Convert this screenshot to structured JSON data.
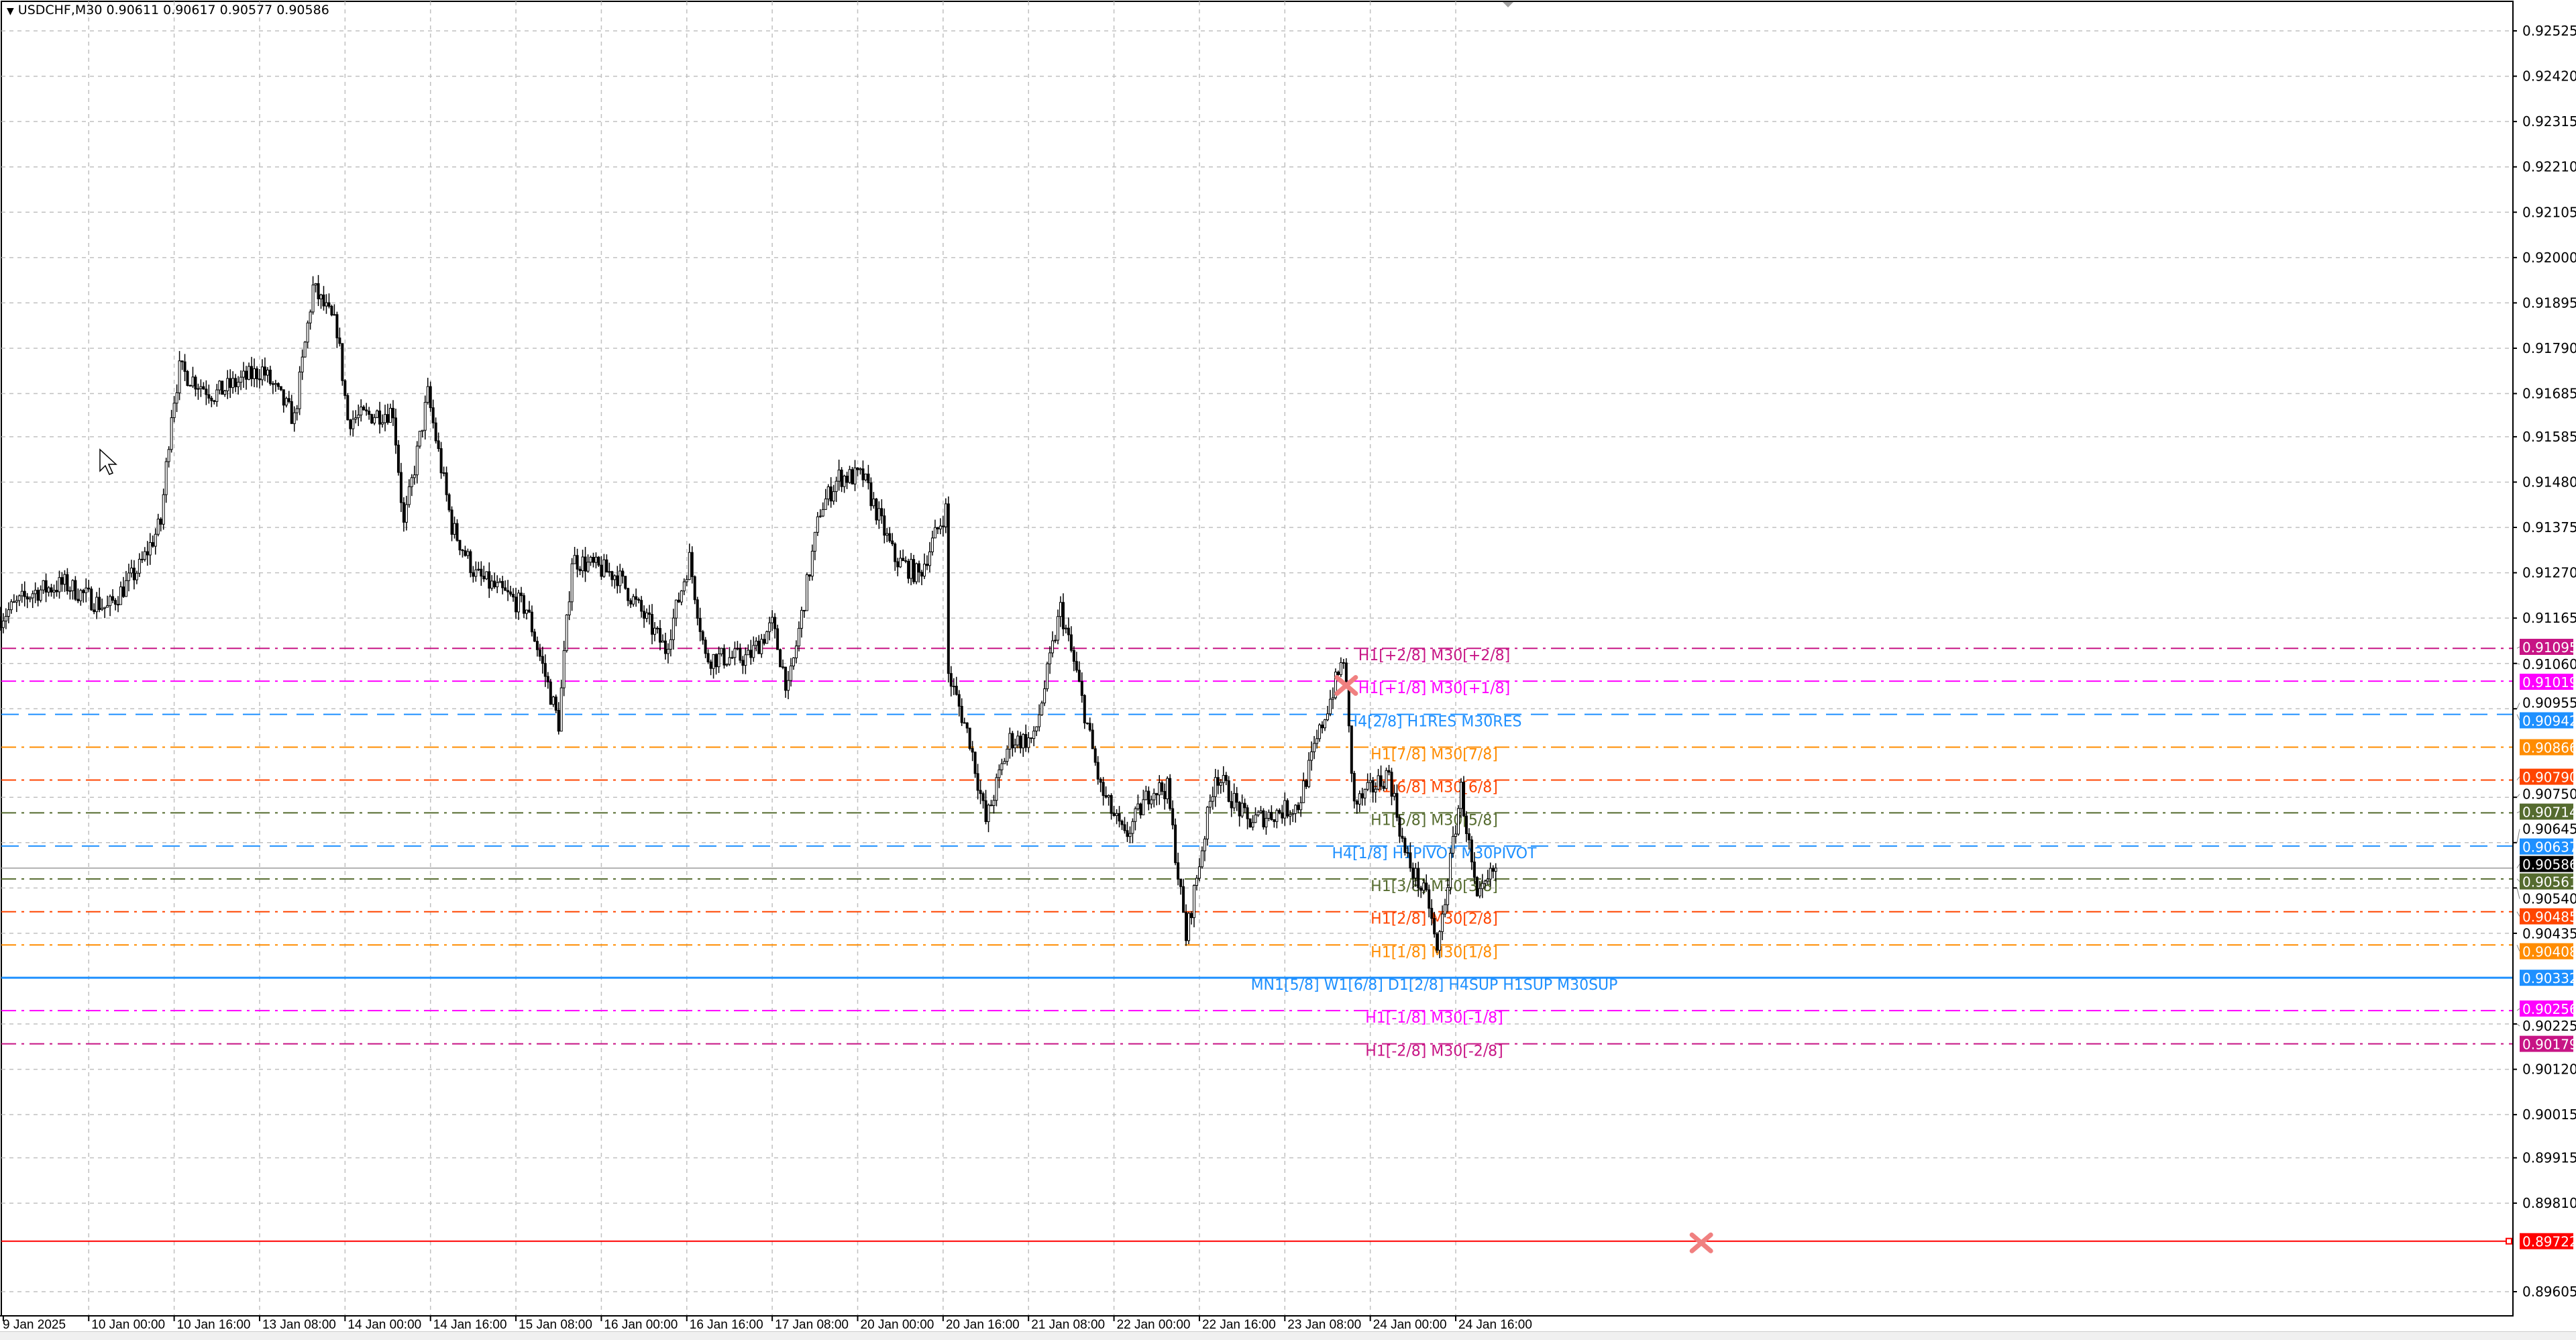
{
  "header": {
    "collapse_icon": "triangle-down-icon",
    "symbol": "USDCHF,M30",
    "open": "0.90611",
    "high": "0.90617",
    "low": "0.90577",
    "close": "0.90586"
  },
  "chart_data": {
    "type": "candlestick",
    "symbol": "USDCHF",
    "timeframe": "M30",
    "ylim": [
      0.8955,
      0.92565
    ],
    "grid": true,
    "colors": {
      "bull_body": "#FFFFFF",
      "bear_body": "#000000",
      "outline": "#000000",
      "grid": "#C0C0C0"
    },
    "price_ticks": [
      "0.92525",
      "0.92420",
      "0.92315",
      "0.92210",
      "0.92105",
      "0.92000",
      "0.91895",
      "0.91790",
      "0.91685",
      "0.91585",
      "0.91480",
      "0.91375",
      "0.91270",
      "0.91165",
      "0.91060",
      "0.90955",
      "0.90750",
      "0.90645",
      "0.90540",
      "0.90435",
      "0.90225",
      "0.90120",
      "0.90015",
      "0.89915",
      "0.89810",
      "0.89605"
    ],
    "time_ticks": [
      {
        "label": "9 Jan 2025",
        "time": "2025-01-09 08:00"
      },
      {
        "label": "10 Jan 00:00",
        "time": "2025-01-10 00:00"
      },
      {
        "label": "10 Jan 16:00",
        "time": "2025-01-10 16:00"
      },
      {
        "label": "13 Jan 08:00",
        "time": "2025-01-13 08:00"
      },
      {
        "label": "14 Jan 00:00",
        "time": "2025-01-14 00:00"
      },
      {
        "label": "14 Jan 16:00",
        "time": "2025-01-14 16:00"
      },
      {
        "label": "15 Jan 08:00",
        "time": "2025-01-15 08:00"
      },
      {
        "label": "16 Jan 00:00",
        "time": "2025-01-16 00:00"
      },
      {
        "label": "16 Jan 16:00",
        "time": "2025-01-16 16:00"
      },
      {
        "label": "17 Jan 08:00",
        "time": "2025-01-17 08:00"
      },
      {
        "label": "20 Jan 00:00",
        "time": "2025-01-20 00:00"
      },
      {
        "label": "20 Jan 16:00",
        "time": "2025-01-20 16:00"
      },
      {
        "label": "21 Jan 08:00",
        "time": "2025-01-21 08:00"
      },
      {
        "label": "22 Jan 00:00",
        "time": "2025-01-22 00:00"
      },
      {
        "label": "22 Jan 16:00",
        "time": "2025-01-22 16:00"
      },
      {
        "label": "23 Jan 08:00",
        "time": "2025-01-23 08:00"
      },
      {
        "label": "24 Jan 00:00",
        "time": "2025-01-24 00:00"
      },
      {
        "label": "24 Jan 16:00",
        "time": "2025-01-24 16:00"
      }
    ],
    "close_path": [
      [
        "2025-01-09 07:30",
        0.91168
      ],
      [
        "2025-01-09 13:30",
        0.91225
      ],
      [
        "2025-01-09 19:30",
        0.91244
      ],
      [
        "2025-01-10 03:30",
        0.91187
      ],
      [
        "2025-01-10 09:30",
        0.91282
      ],
      [
        "2025-01-10 13:30",
        0.91385
      ],
      [
        "2025-01-10 15:30",
        0.91644
      ],
      [
        "2025-01-10 17:00",
        0.9174
      ],
      [
        "2025-01-10 23:30",
        0.91683
      ],
      [
        "2025-01-13 08:30",
        0.9174
      ],
      [
        "2025-01-13 14:30",
        0.91625
      ],
      [
        "2025-01-13 18:00",
        0.9193
      ],
      [
        "2025-01-13 22:30",
        0.91835
      ],
      [
        "2025-01-14 00:30",
        0.91625
      ],
      [
        "2025-01-14 09:00",
        0.91645
      ],
      [
        "2025-01-14 11:00",
        0.91378
      ],
      [
        "2025-01-14 15:30",
        0.91683
      ],
      [
        "2025-01-14 20:00",
        0.91378
      ],
      [
        "2025-01-15 00:30",
        0.91264
      ],
      [
        "2025-01-15 10:00",
        0.91187
      ],
      [
        "2025-01-15 16:00",
        0.90921
      ],
      [
        "2025-01-15 18:30",
        0.91302
      ],
      [
        "2025-01-16 03:00",
        0.91264
      ],
      [
        "2025-01-16 12:00",
        0.91093
      ],
      [
        "2025-01-16 16:30",
        0.91302
      ],
      [
        "2025-01-16 19:30",
        0.91073
      ],
      [
        "2025-01-17 03:30",
        0.91073
      ],
      [
        "2025-01-17 08:00",
        0.91149
      ],
      [
        "2025-01-17 11:00",
        0.90997
      ],
      [
        "2025-01-17 17:00",
        0.91416
      ],
      [
        "2025-01-17 20:30",
        0.91492
      ],
      [
        "2025-01-20 01:00",
        0.91492
      ],
      [
        "2025-01-20 07:00",
        0.91302
      ],
      [
        "2025-01-20 11:30",
        0.91264
      ],
      [
        "2025-01-20 16:30",
        0.91416
      ],
      [
        "2025-01-20 17:00",
        0.91035
      ],
      [
        "2025-01-20 21:00",
        0.90883
      ],
      [
        "2025-01-21 00:00",
        0.90693
      ],
      [
        "2025-01-21 04:30",
        0.90883
      ],
      [
        "2025-01-21 09:00",
        0.90883
      ],
      [
        "2025-01-21 14:00",
        0.91187
      ],
      [
        "2025-01-21 17:00",
        0.91035
      ],
      [
        "2025-01-21 21:30",
        0.90769
      ],
      [
        "2025-01-22 02:00",
        0.90655
      ],
      [
        "2025-01-22 07:00",
        0.90769
      ],
      [
        "2025-01-22 10:00",
        0.90769
      ],
      [
        "2025-01-22 13:30",
        0.90426
      ],
      [
        "2025-01-22 19:00",
        0.90807
      ],
      [
        "2025-01-23 01:00",
        0.90693
      ],
      [
        "2025-01-23 10:30",
        0.90731
      ],
      [
        "2025-01-23 15:00",
        0.90921
      ],
      [
        "2025-01-23 19:00",
        0.91073
      ],
      [
        "2025-01-23 21:00",
        0.90731
      ],
      [
        "2025-01-24 03:30",
        0.90807
      ],
      [
        "2025-01-24 06:30",
        0.90617
      ],
      [
        "2025-01-24 11:00",
        0.90502
      ],
      [
        "2025-01-24 12:30",
        0.90388
      ],
      [
        "2025-01-24 17:00",
        0.90769
      ],
      [
        "2025-01-24 20:00",
        0.90502
      ],
      [
        "2025-01-24 23:00",
        0.90578
      ],
      [
        "2025-01-24 23:30",
        0.90586
      ]
    ],
    "levels": [
      {
        "price": "0.91095",
        "label": "H1[+2/8] M30[+2/8]",
        "color": "#C71585",
        "style": "dashdot"
      },
      {
        "price": "0.91019",
        "label": "H1[+1/8] M30[+1/8]",
        "color": "#FF00FF",
        "style": "dashdot"
      },
      {
        "price": "0.90942",
        "label": "H4[2/8] H1RES M30RES",
        "color": "#1E90FF",
        "style": "dash"
      },
      {
        "price": "0.90866",
        "label": "H1[7/8] M30[7/8]",
        "color": "#FF8C00",
        "style": "dashdot"
      },
      {
        "price": "0.90790",
        "label": "H1[6/8] M30[6/8]",
        "color": "#FF4500",
        "style": "dashdot"
      },
      {
        "price": "0.90714",
        "label": "H1[5/8] M30[5/8]",
        "color": "#556B2F",
        "style": "dashdot"
      },
      {
        "price": "0.90637",
        "label": "H4[1/8] H1PIVOT M30PIVOT",
        "color": "#1E90FF",
        "style": "dash"
      },
      {
        "price": "0.90561",
        "label": "H1[3/8] M30[3/8]",
        "color": "#556B2F",
        "style": "dashdot"
      },
      {
        "price": "0.90485",
        "label": "H1[2/8] M30[2/8]",
        "color": "#FF4500",
        "style": "dashdot"
      },
      {
        "price": "0.90408",
        "label": "H1[1/8] M30[1/8]",
        "color": "#FF8C00",
        "style": "dashdot"
      },
      {
        "price": "0.90332",
        "label": "MN1[5/8] W1[6/8] D1[2/8] H4SUP H1SUP M30SUP",
        "color": "#1E90FF",
        "style": "solid"
      },
      {
        "price": "0.90256",
        "label": "H1[-1/8] M30[-1/8]",
        "color": "#FF00FF",
        "style": "dashdot"
      },
      {
        "price": "0.90179",
        "label": "H1[-2/8] M30[-2/8]",
        "color": "#C71585",
        "style": "dashdot"
      }
    ],
    "bid": {
      "price": "0.90586",
      "color": "#000000"
    },
    "horizontal_line": {
      "price": "0.89722",
      "color": "#FF0000"
    },
    "markers": [
      {
        "type": "cross",
        "time": "2025-01-23 19:30",
        "price": 0.91009,
        "color": "#F08080"
      },
      {
        "type": "cross",
        "time": "2025-01-28 14:00",
        "price": 0.89718,
        "color": "#F08080"
      }
    ],
    "shift_marker_icon": "triangle-down-icon",
    "cursor_icon": "mouse-pointer-icon"
  }
}
